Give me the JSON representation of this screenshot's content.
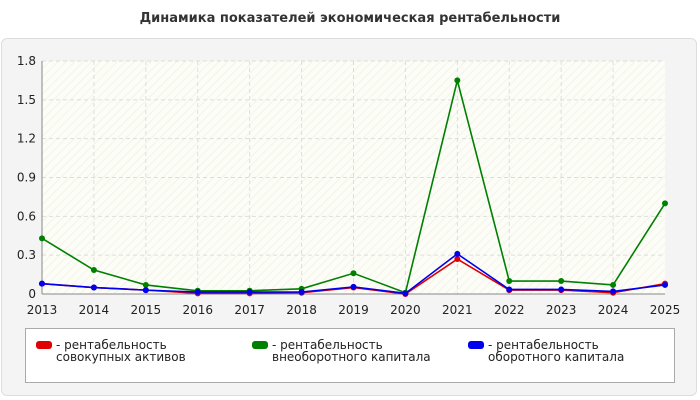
{
  "title": "Динамика показателей экономическая рентабельности",
  "chart_data": {
    "type": "line",
    "categories": [
      "2013",
      "2014",
      "2015",
      "2016",
      "2017",
      "2018",
      "2019",
      "2020",
      "2021",
      "2022",
      "2023",
      "2024",
      "2025"
    ],
    "series": [
      {
        "name": "- рентабельность совокупных активов",
        "color": "#e00000",
        "values": [
          0.08,
          0.05,
          0.03,
          0.005,
          0.005,
          0.01,
          0.05,
          0.0,
          0.27,
          0.03,
          0.03,
          0.01,
          0.08
        ]
      },
      {
        "name": "- рентабельность внеоборотного капитала",
        "color": "#008000",
        "values": [
          0.43,
          0.185,
          0.07,
          0.025,
          0.025,
          0.04,
          0.16,
          0.01,
          1.65,
          0.1,
          0.1,
          0.07,
          0.7
        ]
      },
      {
        "name": "- рентабельность оборотного капитала",
        "color": "#0000ee",
        "values": [
          0.08,
          0.05,
          0.03,
          0.015,
          0.015,
          0.015,
          0.055,
          0.005,
          0.31,
          0.035,
          0.035,
          0.02,
          0.07
        ]
      }
    ],
    "ylim": [
      0,
      1.8
    ],
    "yticks": [
      0,
      0.3,
      0.6,
      0.9,
      1.2,
      1.5,
      1.8
    ],
    "grid": true
  }
}
